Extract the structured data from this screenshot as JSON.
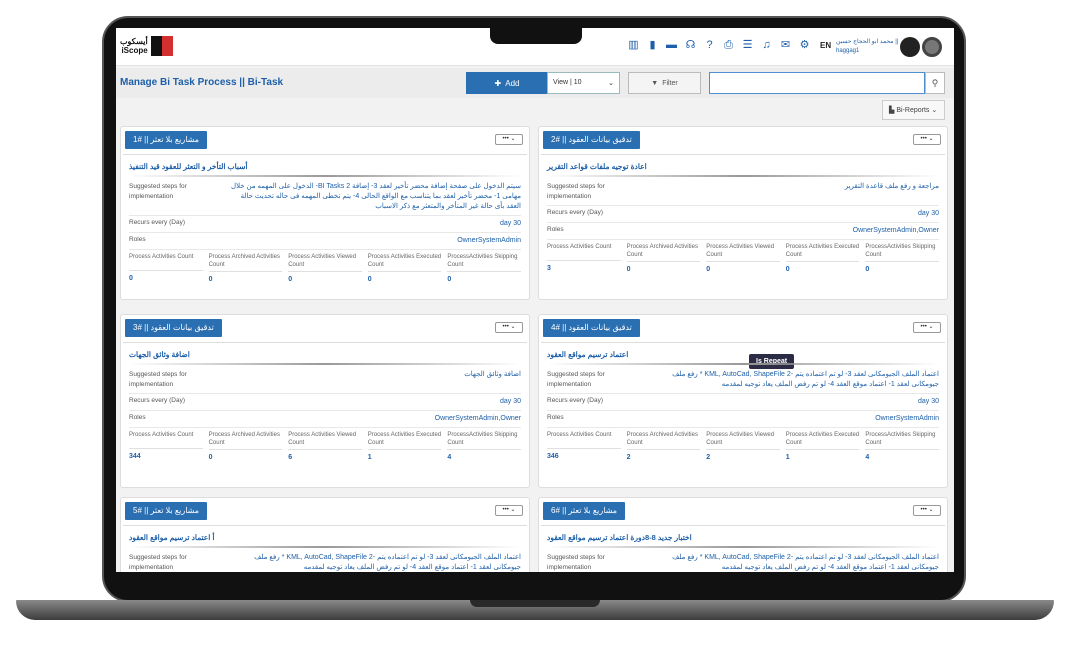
{
  "app": {
    "logo_ar": "أيسكوب",
    "logo_en": "iScope",
    "lang": "EN",
    "user_name": "محمد ابو الحجاج حسين ||",
    "user_id": "haggag1",
    "icons": [
      "bar-chart-icon",
      "document-icon",
      "book-icon",
      "headset-icon",
      "help-icon",
      "printer-icon",
      "checklist-icon",
      "bell-icon",
      "mail-icon",
      "gear-icon"
    ]
  },
  "toolbar": {
    "title": "Manage Bi Task Process || Bi-Task",
    "add_label": "Add",
    "view_label": "View | 10",
    "filter_label": "Filter",
    "search_placeholder": "",
    "bi_reports_label": "Bi-Reports"
  },
  "colors": {
    "primary": "#2a6fb1",
    "badge": "#2b2b45"
  },
  "labels": {
    "steps": "Suggested steps for implementation",
    "recurs": "Recurs every (Day)",
    "roles": "Roles",
    "stats": [
      "Process Activities Count",
      "Process Archived Activities Count",
      "Process Activities Viewed Count",
      "Process Activities Executed Count",
      "ProcessActivities Skipping Count"
    ],
    "repeat": "Is Repeat",
    "more": "•••  ⌄"
  },
  "cards": [
    {
      "header": "مشاريع بلا تعثر || #1",
      "title": "أسباب التأخر و التعثر للعقود قيد التنفيذ",
      "steps": "سيتم الدخول على صفحة إضافة محضر تأخير لعقد 3- إضافة BI Tasks 2- الدخول على المهمه من خلال مهامى 1- محضر تأخير لعقد بما يتناسب مع الواقع الحالى 4- يتم تخطى المهمه فى حاله تحديث حالة العقد بأى حالة غير المتأخر والمتعثر مع ذكر الاسباب",
      "recurs": "30 day",
      "roles": "OwnerSystemAdmin",
      "stats": [
        "0",
        "0",
        "0",
        "0",
        "0"
      ]
    },
    {
      "header": "تدقيق بيانات العقود || #2",
      "title": "اعادة توجيه ملفات قواعد التقرير",
      "steps": "مراجعة و رفع ملف قاعدة التقرير",
      "recurs": "30 day",
      "roles": "OwnerSystemAdmin,Owner",
      "stats": [
        "3",
        "0",
        "0",
        "0",
        "0"
      ]
    },
    {
      "header": "تدقيق بيانات العقود || #3",
      "title": "اضافة وثائق الجهات",
      "steps": "اضافة وثائق الجهات",
      "recurs": "30 day",
      "roles": "OwnerSystemAdmin,Owner",
      "stats": [
        "344",
        "0",
        "6",
        "1",
        "4"
      ]
    },
    {
      "header": "تدقيق بيانات العقود || #4",
      "title": "اعتماد ترسيم مواقع العقود",
      "repeat": true,
      "steps": "اعتماد الملف الجيومكانى لعقد 3- لو تم اعتماده يتم -2 KML, AutoCad, ShapeFile * رفع ملف جيومكانى لعقد 1- اعتماد موقع العقد 4- لو تم رفض الملف يعاد توجيه لمقدمه",
      "recurs": "30 day",
      "roles": "OwnerSystemAdmin",
      "stats": [
        "346",
        "2",
        "2",
        "1",
        "4"
      ]
    },
    {
      "header": "مشاريع بلا تعثر || #5",
      "title": "أ اعتماد ترسيم مواقع العقود",
      "steps": "اعتماد الملف الجيومكانى لعقد 3- لو تم اعتماده يتم -2 KML, AutoCad, ShapeFile * رفع ملف جيومكانى لعقد 1- اعتماد موقع العقد 4- لو تم رفض الملف يعاد توجيه لمقدمه",
      "recurs": "",
      "roles": "",
      "stats": []
    },
    {
      "header": "مشاريع بلا تعثر || #6",
      "title": "اختبار جديد 8-8دورة اعتماد ترسيم مواقع العقود",
      "steps": "اعتماد الملف الجيومكانى لعقد 3- لو تم اعتماده يتم -2 KML, AutoCad, ShapeFile * رفع ملف جيومكانى لعقد 1- اعتماد موقع العقد 4- لو تم رفض الملف يعاد توجيه لمقدمه",
      "recurs": "",
      "roles": "",
      "stats": []
    }
  ]
}
